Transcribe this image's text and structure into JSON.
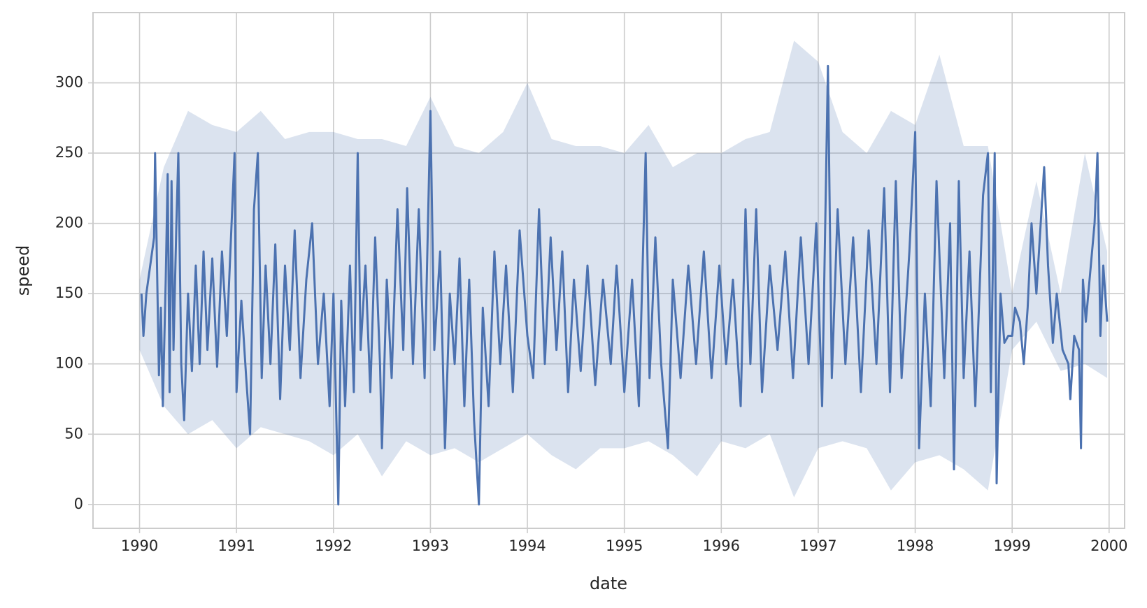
{
  "chart_data": {
    "type": "line",
    "x_label": "date",
    "y_label": "speed",
    "xlim": [
      1989.52,
      2000.16
    ],
    "ylim": [
      -17,
      350
    ],
    "xticks": [
      1990,
      1991,
      1992,
      1993,
      1994,
      1995,
      1996,
      1997,
      1998,
      1999,
      2000
    ],
    "yticks": [
      0,
      50,
      100,
      150,
      200,
      250,
      300
    ],
    "grid": true,
    "series": [
      {
        "color": "#4c72b0",
        "x": [
          1990.02,
          1990.04,
          1990.07,
          1990.15,
          1990.16,
          1990.19,
          1990.2,
          1990.22,
          1990.24,
          1990.27,
          1990.29,
          1990.31,
          1990.33,
          1990.35,
          1990.38,
          1990.4,
          1990.43,
          1990.46,
          1990.5,
          1990.54,
          1990.58,
          1990.62,
          1990.66,
          1990.7,
          1990.75,
          1990.8,
          1990.85,
          1990.9,
          1990.98,
          1991.0,
          1991.05,
          1991.1,
          1991.14,
          1991.18,
          1991.22,
          1991.26,
          1991.3,
          1991.35,
          1991.4,
          1991.45,
          1991.5,
          1991.55,
          1991.6,
          1991.66,
          1991.72,
          1991.78,
          1991.84,
          1991.9,
          1991.96,
          1992.0,
          1992.03,
          1992.05,
          1992.08,
          1992.12,
          1992.17,
          1992.21,
          1992.25,
          1992.28,
          1992.33,
          1992.38,
          1992.43,
          1992.48,
          1992.5,
          1992.55,
          1992.6,
          1992.66,
          1992.72,
          1992.76,
          1992.82,
          1992.88,
          1992.94,
          1993.0,
          1993.04,
          1993.1,
          1993.15,
          1993.2,
          1993.25,
          1993.3,
          1993.35,
          1993.4,
          1993.45,
          1993.5,
          1993.54,
          1993.6,
          1993.66,
          1993.72,
          1993.78,
          1993.85,
          1993.92,
          1994.0,
          1994.06,
          1994.12,
          1994.18,
          1994.24,
          1994.3,
          1994.36,
          1994.42,
          1994.48,
          1994.55,
          1994.62,
          1994.7,
          1994.78,
          1994.86,
          1994.92,
          1995.0,
          1995.08,
          1995.15,
          1995.22,
          1995.26,
          1995.32,
          1995.38,
          1995.45,
          1995.5,
          1995.58,
          1995.66,
          1995.74,
          1995.82,
          1995.9,
          1995.98,
          1996.05,
          1996.12,
          1996.2,
          1996.25,
          1996.3,
          1996.36,
          1996.42,
          1996.5,
          1996.58,
          1996.66,
          1996.74,
          1996.82,
          1996.9,
          1996.98,
          1997.04,
          1997.1,
          1997.14,
          1997.2,
          1997.28,
          1997.36,
          1997.44,
          1997.52,
          1997.6,
          1997.68,
          1997.74,
          1997.8,
          1997.86,
          1997.94,
          1998.0,
          1998.04,
          1998.1,
          1998.16,
          1998.22,
          1998.3,
          1998.36,
          1998.4,
          1998.45,
          1998.5,
          1998.56,
          1998.62,
          1998.7,
          1998.75,
          1998.78,
          1998.82,
          1998.84,
          1998.88,
          1998.92,
          1998.96,
          1999.0,
          1999.03,
          1999.08,
          1999.12,
          1999.16,
          1999.2,
          1999.25,
          1999.33,
          1999.37,
          1999.42,
          1999.46,
          1999.52,
          1999.58,
          1999.6,
          1999.64,
          1999.69,
          1999.71,
          1999.73,
          1999.76,
          1999.85,
          1999.88,
          1999.91,
          1999.94,
          1999.98
        ],
        "values": [
          150,
          120,
          150,
          190,
          250,
          130,
          92,
          140,
          70,
          160,
          235,
          80,
          230,
          110,
          200,
          250,
          100,
          60,
          150,
          95,
          170,
          100,
          180,
          110,
          175,
          98,
          180,
          120,
          250,
          80,
          145,
          90,
          50,
          210,
          250,
          90,
          170,
          100,
          185,
          75,
          170,
          110,
          195,
          90,
          160,
          200,
          100,
          150,
          70,
          150,
          60,
          0,
          145,
          70,
          170,
          80,
          250,
          110,
          170,
          80,
          190,
          100,
          40,
          160,
          90,
          210,
          110,
          225,
          100,
          210,
          90,
          280,
          110,
          180,
          40,
          150,
          100,
          175,
          70,
          160,
          60,
          0,
          140,
          70,
          180,
          100,
          170,
          80,
          195,
          120,
          90,
          210,
          100,
          190,
          110,
          180,
          80,
          160,
          95,
          170,
          85,
          160,
          100,
          170,
          80,
          160,
          70,
          250,
          90,
          190,
          100,
          40,
          160,
          90,
          170,
          100,
          180,
          90,
          170,
          100,
          160,
          70,
          210,
          100,
          210,
          80,
          170,
          110,
          180,
          90,
          190,
          100,
          200,
          70,
          312,
          90,
          210,
          100,
          190,
          80,
          195,
          100,
          225,
          80,
          230,
          90,
          180,
          265,
          40,
          150,
          70,
          230,
          90,
          200,
          25,
          230,
          90,
          180,
          70,
          220,
          250,
          80,
          250,
          15,
          150,
          115,
          120,
          120,
          140,
          130,
          100,
          140,
          200,
          150,
          240,
          170,
          115,
          150,
          110,
          100,
          75,
          120,
          110,
          40,
          160,
          130,
          200,
          250,
          120,
          170,
          130
        ]
      }
    ],
    "band": {
      "color": "#4c72b0",
      "x": [
        1990.0,
        1990.25,
        1990.5,
        1990.75,
        1991.0,
        1991.25,
        1991.5,
        1991.75,
        1992.0,
        1992.25,
        1992.5,
        1992.75,
        1993.0,
        1993.25,
        1993.5,
        1993.75,
        1994.0,
        1994.25,
        1994.5,
        1994.75,
        1995.0,
        1995.25,
        1995.5,
        1995.75,
        1996.0,
        1996.25,
        1996.5,
        1996.75,
        1997.0,
        1997.25,
        1997.5,
        1997.75,
        1998.0,
        1998.25,
        1998.5,
        1998.75,
        1999.0,
        1999.25,
        1999.5,
        1999.75,
        1999.98
      ],
      "lower": [
        110,
        70,
        50,
        60,
        40,
        55,
        50,
        45,
        35,
        50,
        20,
        45,
        35,
        40,
        30,
        40,
        50,
        35,
        25,
        40,
        40,
        45,
        35,
        20,
        45,
        40,
        50,
        5,
        40,
        45,
        40,
        10,
        30,
        35,
        25,
        10,
        110,
        130,
        95,
        100,
        90
      ],
      "upper": [
        160,
        240,
        280,
        270,
        265,
        280,
        260,
        265,
        265,
        260,
        260,
        255,
        290,
        255,
        250,
        265,
        300,
        260,
        255,
        255,
        250,
        270,
        240,
        250,
        250,
        260,
        265,
        330,
        315,
        265,
        250,
        280,
        270,
        320,
        255,
        255,
        150,
        230,
        150,
        250,
        180
      ]
    }
  }
}
